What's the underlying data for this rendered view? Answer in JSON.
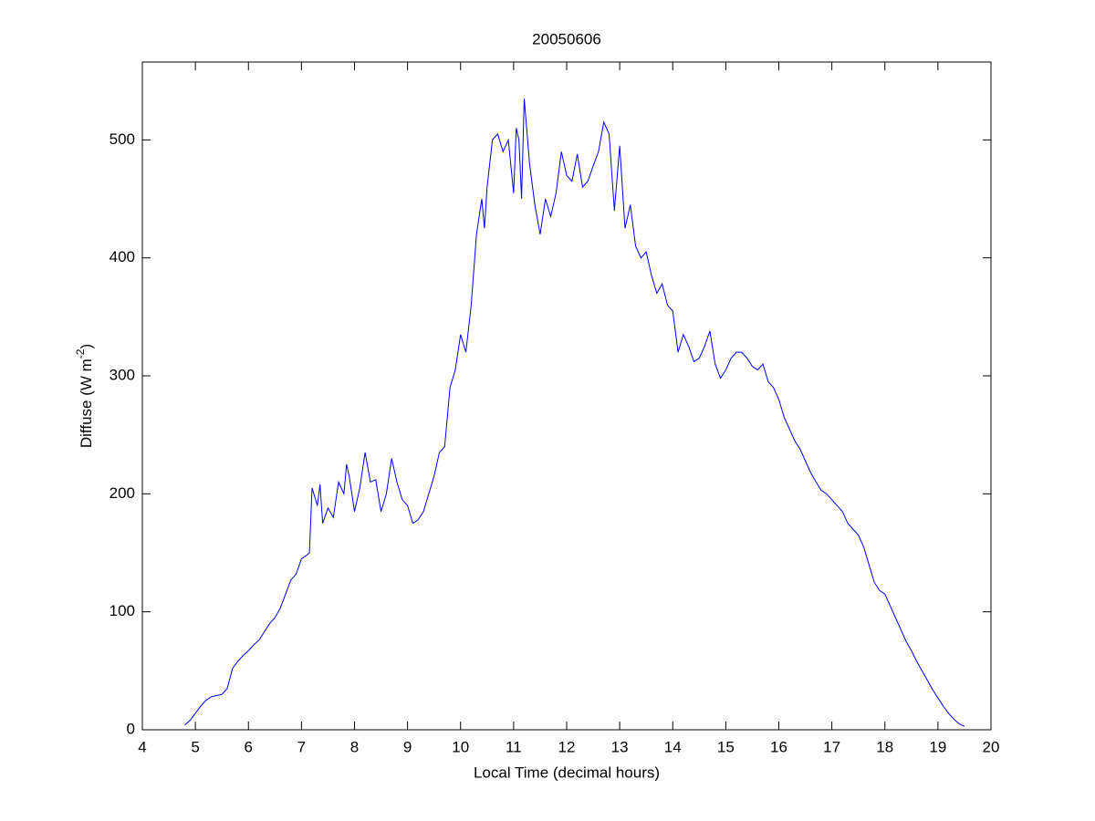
{
  "chart_data": {
    "type": "line",
    "title": "20050606",
    "xlabel": "Local Time (decimal hours)",
    "ylabel": {
      "text": "Diffuse (W m",
      "superscript": "-2",
      "suffix": ")"
    },
    "color": "#0000ff",
    "box": true,
    "xlim": [
      4,
      20
    ],
    "xticks": [
      4,
      5,
      6,
      7,
      8,
      9,
      10,
      11,
      12,
      13,
      14,
      15,
      16,
      17,
      18,
      19,
      20
    ],
    "ylim": [
      0,
      566
    ],
    "yticks": [
      0,
      100,
      200,
      300,
      400,
      500
    ],
    "x": [
      4.8,
      4.9,
      5.0,
      5.1,
      5.2,
      5.3,
      5.4,
      5.5,
      5.6,
      5.7,
      5.8,
      5.9,
      6.0,
      6.1,
      6.2,
      6.3,
      6.4,
      6.5,
      6.6,
      6.7,
      6.8,
      6.9,
      7.0,
      7.1,
      7.15,
      7.2,
      7.3,
      7.35,
      7.4,
      7.5,
      7.6,
      7.7,
      7.8,
      7.85,
      7.9,
      8.0,
      8.1,
      8.2,
      8.3,
      8.4,
      8.5,
      8.6,
      8.7,
      8.8,
      8.9,
      9.0,
      9.1,
      9.2,
      9.3,
      9.4,
      9.5,
      9.6,
      9.7,
      9.8,
      9.9,
      10.0,
      10.1,
      10.2,
      10.3,
      10.4,
      10.45,
      10.5,
      10.6,
      10.7,
      10.8,
      10.9,
      11.0,
      11.05,
      11.1,
      11.15,
      11.2,
      11.3,
      11.4,
      11.5,
      11.6,
      11.7,
      11.8,
      11.9,
      12.0,
      12.1,
      12.2,
      12.3,
      12.4,
      12.5,
      12.6,
      12.7,
      12.8,
      12.9,
      13.0,
      13.1,
      13.2,
      13.3,
      13.4,
      13.5,
      13.6,
      13.7,
      13.8,
      13.9,
      14.0,
      14.1,
      14.2,
      14.3,
      14.4,
      14.5,
      14.6,
      14.7,
      14.8,
      14.9,
      15.0,
      15.1,
      15.2,
      15.3,
      15.4,
      15.5,
      15.6,
      15.7,
      15.8,
      15.9,
      16.0,
      16.1,
      16.2,
      16.3,
      16.4,
      16.5,
      16.6,
      16.7,
      16.8,
      16.9,
      17.0,
      17.1,
      17.2,
      17.3,
      17.4,
      17.5,
      17.6,
      17.7,
      17.8,
      17.9,
      18.0,
      18.1,
      18.2,
      18.3,
      18.4,
      18.5,
      18.6,
      18.7,
      18.8,
      18.9,
      19.0,
      19.1,
      19.2,
      19.3,
      19.4,
      19.5
    ],
    "values": [
      4,
      8,
      14,
      20,
      25,
      28,
      29,
      30,
      35,
      52,
      58,
      63,
      67,
      72,
      76,
      83,
      90,
      95,
      103,
      115,
      127,
      132,
      145,
      148,
      150,
      205,
      190,
      208,
      175,
      188,
      180,
      210,
      200,
      225,
      215,
      185,
      205,
      235,
      210,
      212,
      185,
      200,
      230,
      210,
      195,
      190,
      175,
      178,
      185,
      200,
      215,
      235,
      240,
      290,
      305,
      335,
      320,
      360,
      420,
      450,
      425,
      460,
      500,
      505,
      490,
      500,
      455,
      510,
      500,
      450,
      535,
      480,
      445,
      420,
      450,
      435,
      455,
      490,
      470,
      465,
      488,
      460,
      465,
      478,
      490,
      515,
      505,
      440,
      495,
      425,
      445,
      410,
      400,
      405,
      385,
      370,
      378,
      360,
      355,
      320,
      335,
      325,
      312,
      315,
      325,
      338,
      310,
      298,
      305,
      315,
      320,
      320,
      315,
      308,
      305,
      310,
      295,
      290,
      280,
      265,
      255,
      245,
      238,
      228,
      218,
      210,
      203,
      200,
      195,
      190,
      185,
      175,
      170,
      165,
      155,
      140,
      125,
      118,
      115,
      105,
      95,
      85,
      75,
      67,
      58,
      50,
      42,
      34,
      27,
      20,
      14,
      9,
      5,
      3
    ]
  }
}
